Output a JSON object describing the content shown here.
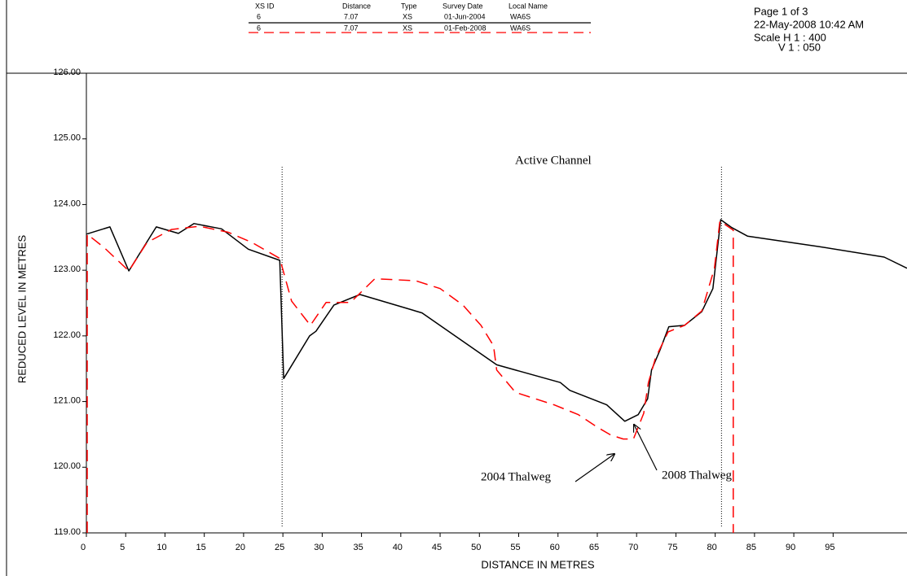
{
  "header": {
    "columns": [
      "XS ID",
      "Distance",
      "Type",
      "Survey Date",
      "Local Name"
    ],
    "rows": [
      [
        "6",
        "7.07",
        "XS",
        "01-Jun-2004",
        "WA6S"
      ],
      [
        "6",
        "7.07",
        "XS",
        "01-Feb-2008",
        "WA6S"
      ]
    ]
  },
  "page_info": {
    "page": "Page 1 of 3",
    "printed": "22-May-2008 10:42 AM",
    "scale_h": "Scale H 1 : 400",
    "scale_v": "V 1 : 050"
  },
  "chart_data": {
    "type": "line",
    "x_label": "DISTANCE IN METRES",
    "y_label": "REDUCED LEVEL IN METRES",
    "xlim": [
      0,
      104.4
    ],
    "ylim": [
      119,
      126
    ],
    "xticks": [
      0,
      5,
      10,
      15,
      20,
      25,
      30,
      35,
      40,
      45,
      50,
      55,
      60,
      65,
      70,
      75,
      80,
      85,
      90,
      95
    ],
    "yticks": [
      {
        "value": 119,
        "label": "119.00"
      },
      {
        "value": 120,
        "label": "120.00"
      },
      {
        "value": 121,
        "label": "121.00"
      },
      {
        "value": 122,
        "label": "122.00"
      },
      {
        "value": 123,
        "label": "123.00"
      },
      {
        "value": 124,
        "label": "124.00"
      },
      {
        "value": 125,
        "label": "125.00"
      },
      {
        "value": 126,
        "label": "126.00"
      }
    ],
    "reference_lines": [
      24.9,
      80.8
    ],
    "annotations": [
      "Active Channel",
      "2004 Thalweg",
      "2008 Thalweg"
    ],
    "series": [
      {
        "color": "#000000",
        "dashed": false,
        "x": [
          0,
          3.0,
          5.4,
          8.9,
          11.7,
          13.7,
          17.2,
          20.6,
          24.6,
          25.1,
          28.4,
          29.2,
          31.5,
          34.8,
          42.7,
          52.2,
          60.3,
          61.5,
          66.2,
          68.5,
          70.2,
          71.4,
          71.9,
          73.0,
          74.1,
          76.1,
          78.3,
          79.7,
          80.7,
          82.1,
          84.1,
          93.2,
          101.5,
          104.4
        ],
        "values": [
          123.55,
          123.66,
          122.99,
          123.66,
          123.56,
          123.71,
          123.63,
          123.32,
          123.15,
          121.35,
          122.0,
          122.07,
          122.47,
          122.63,
          122.35,
          121.56,
          121.29,
          121.17,
          120.95,
          120.7,
          120.8,
          121.04,
          121.48,
          121.79,
          122.14,
          122.16,
          122.37,
          122.72,
          123.77,
          123.65,
          123.52,
          123.36,
          123.2,
          123.03
        ]
      },
      {
        "color": "#ff0000",
        "dashed": true,
        "x": [
          0.1,
          0.1,
          2.3,
          5.4,
          7.7,
          10.8,
          14.4,
          18.0,
          21.1,
          24.6,
          26.1,
          28.5,
          30.5,
          33.6,
          36.7,
          41.9,
          45.0,
          47.9,
          50.2,
          51.8,
          52.2,
          54.6,
          59.5,
          62.6,
          65.0,
          66.7,
          68.3,
          69.6,
          70.9,
          71.5,
          72.4,
          74.0,
          76.1,
          78.3,
          79.9,
          80.6,
          82.3,
          82.3
        ],
        "values": [
          119,
          123.55,
          123.34,
          122.99,
          123.42,
          123.62,
          123.67,
          123.58,
          123.42,
          123.18,
          122.53,
          122.16,
          122.51,
          122.51,
          122.87,
          122.84,
          122.72,
          122.47,
          122.16,
          121.85,
          121.48,
          121.14,
          120.95,
          120.8,
          120.61,
          120.49,
          120.43,
          120.43,
          120.82,
          121.29,
          121.66,
          122.06,
          122.16,
          122.38,
          123.03,
          123.75,
          123.61,
          119
        ]
      }
    ]
  }
}
